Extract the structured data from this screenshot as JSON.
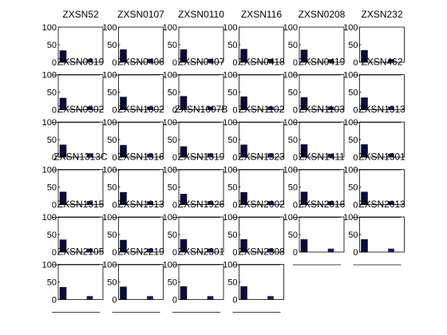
{
  "chart_data": {
    "type": "bar",
    "layout": "small-multiples grid, 6 columns",
    "ylim": [
      0,
      100
    ],
    "yticks": [
      0,
      50,
      100
    ],
    "bar_colors": [
      "#0a0a3c",
      "#1c1c6e"
    ],
    "axis_color": "#000000",
    "panels": [
      {
        "title": "ZXSN52",
        "values": [
          33,
          8
        ]
      },
      {
        "title": "ZXSN0107",
        "values": [
          36,
          9
        ]
      },
      {
        "title": "ZXSN0110",
        "values": [
          36,
          9
        ]
      },
      {
        "title": "ZXSN116",
        "values": [
          37,
          9
        ]
      },
      {
        "title": "ZXSN0208",
        "values": [
          35,
          8
        ]
      },
      {
        "title": "ZXSN232",
        "values": [
          34,
          8
        ]
      },
      {
        "title": "ZXSN0319",
        "values": [
          33,
          8
        ]
      },
      {
        "title": "ZXSN0406",
        "values": [
          36,
          8
        ]
      },
      {
        "title": "ZXSN0407",
        "values": [
          38,
          8
        ]
      },
      {
        "title": "ZXSN0418",
        "values": [
          37,
          8
        ]
      },
      {
        "title": "ZXSN0419",
        "values": [
          35,
          8
        ]
      },
      {
        "title": "ZXSN462",
        "values": [
          34,
          8
        ]
      },
      {
        "title": "ZXSN0502",
        "values": [
          35,
          10
        ]
      },
      {
        "title": "ZXSN1002",
        "values": [
          34,
          9
        ]
      },
      {
        "title": "ZXSN1007B",
        "values": [
          30,
          10
        ]
      },
      {
        "title": "ZXSN1102",
        "values": [
          35,
          10
        ]
      },
      {
        "title": "ZXSN1103",
        "values": [
          36,
          9
        ]
      },
      {
        "title": "ZXSN1313",
        "values": [
          36,
          9
        ]
      },
      {
        "title": "ZXSN1313C",
        "values": [
          36,
          9
        ]
      },
      {
        "title": "ZXSN1316",
        "values": [
          35,
          9
        ]
      },
      {
        "title": "ZXSN1319",
        "values": [
          30,
          9
        ]
      },
      {
        "title": "ZXSN1323",
        "values": [
          35,
          9
        ]
      },
      {
        "title": "ZXSN1411",
        "values": [
          36,
          9
        ]
      },
      {
        "title": "ZXSN1501",
        "values": [
          36,
          9
        ]
      },
      {
        "title": "ZXSN1515",
        "values": [
          35,
          9
        ]
      },
      {
        "title": "ZXSN1913",
        "values": [
          34,
          9
        ]
      },
      {
        "title": "ZXSN1926",
        "values": [
          36,
          9
        ]
      },
      {
        "title": "ZXSN2002",
        "values": [
          36,
          9
        ]
      },
      {
        "title": "ZXSN2016",
        "values": [
          36,
          9
        ]
      },
      {
        "title": "ZXSN2013",
        "values": [
          36,
          9
        ]
      },
      {
        "title": "ZXSN2105",
        "values": [
          35,
          9
        ]
      },
      {
        "title": "ZXSN2219",
        "values": [
          36,
          9
        ]
      },
      {
        "title": "ZXSN2301",
        "values": [
          37,
          9
        ]
      },
      {
        "title": "ZXSN2308",
        "values": [
          37,
          9
        ]
      }
    ]
  }
}
